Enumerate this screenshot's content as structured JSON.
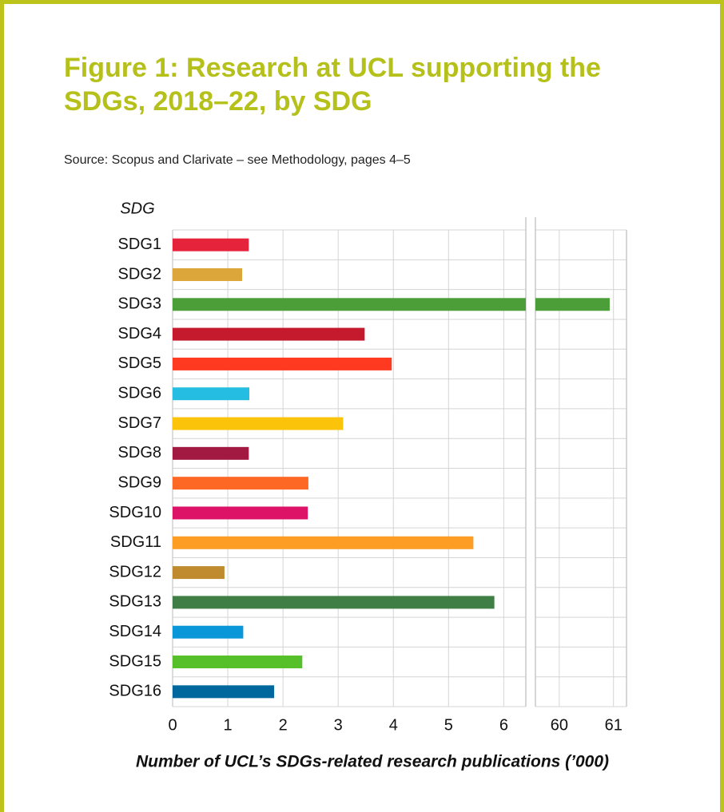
{
  "chart_data": {
    "type": "bar",
    "orientation": "horizontal",
    "title": "Figure 1: Research at UCL supporting the SDGs, 2018–22, by SDG",
    "source": "Source: Scopus and Clarivate – see Methodology, pages 4–5",
    "y_label": "SDG",
    "x_label": "Number of UCL’s SDGs-related research publications (’000)",
    "categories": [
      "SDG1",
      "SDG2",
      "SDG3",
      "SDG4",
      "SDG5",
      "SDG6",
      "SDG7",
      "SDG8",
      "SDG9",
      "SDG10",
      "SDG11",
      "SDG12",
      "SDG13",
      "SDG14",
      "SDG15",
      "SDG16"
    ],
    "values": [
      1.38,
      1.26,
      60.93,
      3.48,
      3.97,
      1.39,
      3.09,
      1.38,
      2.46,
      2.45,
      5.45,
      0.94,
      5.83,
      1.28,
      2.35,
      1.84
    ],
    "colors": [
      "#e5243b",
      "#dda63a",
      "#4c9f38",
      "#c5192d",
      "#ff3a21",
      "#26bde2",
      "#fcc30b",
      "#a21942",
      "#fd6925",
      "#dd1367",
      "#fd9d24",
      "#bf8b2e",
      "#3f7e44",
      "#0a97d9",
      "#56c02b",
      "#00689d"
    ],
    "xlim": [
      0,
      61.24
    ],
    "x_break": [
      6.4,
      59.56
    ],
    "xticks": [
      0,
      1,
      2,
      3,
      4,
      5,
      6,
      60,
      61
    ],
    "grid": true
  }
}
